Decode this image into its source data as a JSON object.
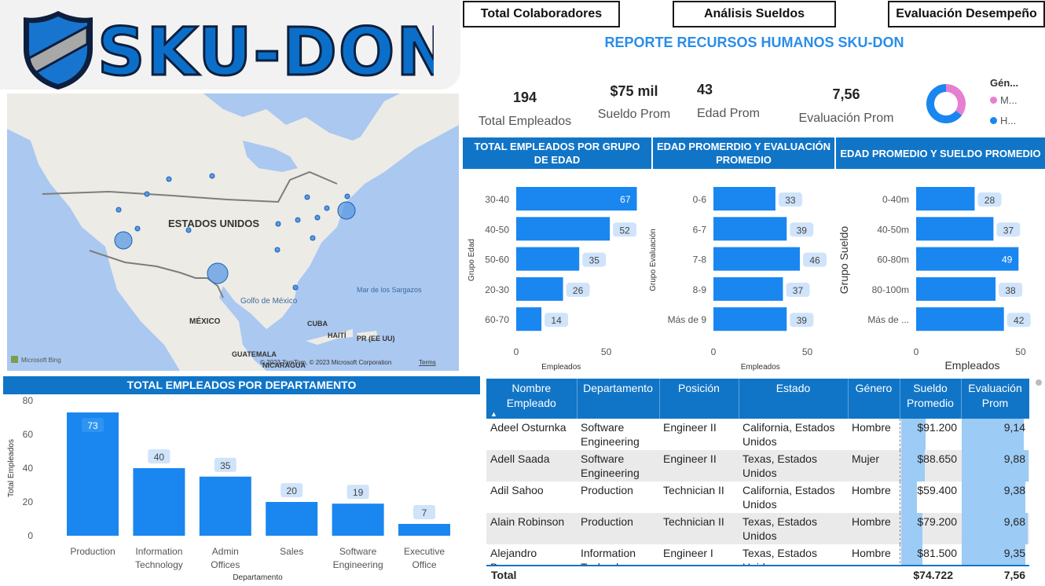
{
  "logo": {
    "text": "SKU-DON",
    "icon": "shield-icon"
  },
  "nav": {
    "colaboradores": "Total Colaboradores",
    "sueldos": "Análisis Sueldos",
    "desempeno": "Evaluación Desempeño"
  },
  "report_title": "REPORTE RECURSOS HUMANOS SKU-DON",
  "kpis": {
    "total_empleados": {
      "value": "194",
      "label": "Total Empleados"
    },
    "sueldo_prom": {
      "value": "$75 mil",
      "label": "Sueldo Prom"
    },
    "edad_prom": {
      "value": "43",
      "label": "Edad Prom"
    },
    "evaluacion_prom": {
      "value": "7,56",
      "label": "Evaluación Prom"
    }
  },
  "genero_legend": {
    "title": "Gén...",
    "items": [
      "M...",
      "H..."
    ],
    "colors": [
      "#e57fd1",
      "#1a86f0"
    ],
    "shares": [
      0.35,
      0.65
    ]
  },
  "map": {
    "labels": {
      "usa": "ESTADOS UNIDOS",
      "mexico": "MÉXICO",
      "golfo": "Golfo de México",
      "sargazos": "Mar de los Sargazos",
      "cuba": "CUBA",
      "haiti": "HAITÍ",
      "pr": "PR (EE UU)",
      "guatemala": "GUATEMALA",
      "nicaragua": "NICARAGUA"
    },
    "bing": "Microsoft Bing",
    "copyright": "© 2023 TomTom, © 2023 Microsoft Corporation",
    "terms": "Terms",
    "colors": {
      "water": "#aac8f0",
      "land": "#ecebe6",
      "bubble": "#5b9ae3",
      "bubble_stroke": "#1a5fb4"
    }
  },
  "charts": {
    "edad": {
      "title": "TOTAL EMPLEADOS POR GRUPO DE EDAD",
      "ylabel": "Grupo Edad",
      "xlabel": "Empleados",
      "ticks": [
        "0",
        "50"
      ]
    },
    "evaluacion": {
      "title": "EDAD PROMERDIO Y EVALUACIÓN PROMEDIO",
      "ylabel": "Grupo Evaluación",
      "xlabel": "Empleados",
      "ticks": [
        "0",
        "50"
      ]
    },
    "sueldo": {
      "title": "EDAD PROMEDIO Y SUELDO PROMEDIO",
      "ylabel": "Grupo Sueldo",
      "xlabel": "Empleados",
      "ticks": [
        "0",
        "50"
      ]
    },
    "departamento": {
      "title": "TOTAL EMPLEADOS POR DEPARTAMENTO",
      "ylabel": "Total Empleados",
      "xlabel": "Departamento",
      "ticks": [
        "0",
        "20",
        "40",
        "60",
        "80"
      ]
    }
  },
  "chart_data": [
    {
      "type": "bar",
      "orientation": "horizontal",
      "title": "TOTAL EMPLEADOS POR GRUPO DE EDAD",
      "categories": [
        "30-40",
        "40-50",
        "50-60",
        "20-30",
        "60-70"
      ],
      "values": [
        67,
        52,
        35,
        26,
        14
      ],
      "xlabel": "Empleados",
      "ylabel": "Grupo Edad",
      "xlim": [
        0,
        65
      ]
    },
    {
      "type": "bar",
      "orientation": "horizontal",
      "title": "EDAD PROMERDIO Y EVALUACIÓN PROMEDIO",
      "categories": [
        "0-6",
        "6-7",
        "7-8",
        "8-9",
        "Más de 9"
      ],
      "values": [
        33,
        39,
        46,
        37,
        39
      ],
      "xlabel": "Empleados",
      "ylabel": "Grupo Evaluación",
      "xlim": [
        0,
        55
      ]
    },
    {
      "type": "bar",
      "orientation": "horizontal",
      "title": "EDAD PROMEDIO Y SUELDO PROMEDIO",
      "categories": [
        "0-40m",
        "40-50m",
        "60-80m",
        "80-100m",
        "Más de ..."
      ],
      "values": [
        28,
        37,
        49,
        38,
        42
      ],
      "xlabel": "Empleados",
      "ylabel": "Grupo Sueldo",
      "xlim": [
        0,
        52
      ]
    },
    {
      "type": "bar",
      "orientation": "vertical",
      "title": "TOTAL EMPLEADOS POR DEPARTAMENTO",
      "categories": [
        "Production",
        "Information Technology",
        "Admin Offices",
        "Sales",
        "Software Engineering",
        "Executive Office"
      ],
      "values": [
        73,
        40,
        35,
        20,
        19,
        7
      ],
      "xlabel": "Departamento",
      "ylabel": "Total Empleados",
      "ylim": [
        0,
        80
      ]
    }
  ],
  "table": {
    "columns": [
      "Nombre Empleado",
      "Departamento",
      "Posición",
      "Estado",
      "Género",
      "Sueldo Promedio",
      "Evaluación Prom"
    ],
    "rows": [
      {
        "nombre": "Adeel Osturnka",
        "depto": "Software Engineering",
        "posicion": "Engineer II",
        "estado": "California, Estados Unidos",
        "genero": "Hombre",
        "sueldo": "$91.200",
        "sueldo_frac": 0.4,
        "eval": "9,14",
        "eval_frac": 0.91
      },
      {
        "nombre": "Adell Saada",
        "depto": "Software Engineering",
        "posicion": "Engineer II",
        "estado": "Texas, Estados Unidos",
        "genero": "Mujer",
        "sueldo": "$88.650",
        "sueldo_frac": 0.39,
        "eval": "9,88",
        "eval_frac": 0.98
      },
      {
        "nombre": "Adil Sahoo",
        "depto": "Production",
        "posicion": "Technician II",
        "estado": "California, Estados Unidos",
        "genero": "Hombre",
        "sueldo": "$59.400",
        "sueldo_frac": 0.26,
        "eval": "9,38",
        "eval_frac": 0.93
      },
      {
        "nombre": "Alain Robinson",
        "depto": "Production",
        "posicion": "Technician II",
        "estado": "Texas, Estados Unidos",
        "genero": "Hombre",
        "sueldo": "$79.200",
        "sueldo_frac": 0.35,
        "eval": "9,68",
        "eval_frac": 0.96
      },
      {
        "nombre": "Alejandro Bacong",
        "depto": "Information Technology",
        "posicion": "Engineer I",
        "estado": "Texas, Estados Unidos",
        "genero": "Hombre",
        "sueldo": "$81.500",
        "sueldo_frac": 0.36,
        "eval": "9,35",
        "eval_frac": 0.93
      }
    ],
    "total": {
      "label": "Total",
      "sueldo": "$74.722",
      "eval": "7,56"
    }
  }
}
